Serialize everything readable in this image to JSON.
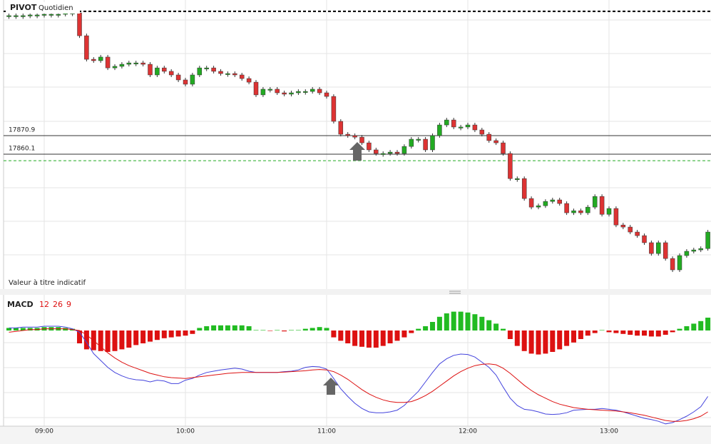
{
  "chart_data": [
    {
      "type": "candlestick",
      "title": "PIVOT",
      "subtitle": "Quotidien",
      "note": "Valeur à titre indicatif",
      "ylim": [
        17781.6,
        17949.8
      ],
      "up_color": "#22aa22",
      "down_color": "#dd3333",
      "price_lines": [
        17870.9,
        17860.1
      ],
      "dashed_lines": [
        {
          "value": 17943.2,
          "color": "#000000"
        },
        {
          "value": 17856.3,
          "color": "#22aa22"
        }
      ],
      "close": [
        17940.7,
        17940.7,
        17940.7,
        17941.1,
        17941.1,
        17941.5,
        17941.5,
        17941.5,
        17942.3,
        17942.3,
        17929.0,
        17915.3,
        17914.5,
        17916.6,
        17910.3,
        17911.2,
        17912.4,
        17913.2,
        17913.2,
        17912.4,
        17906.2,
        17910.3,
        17908.3,
        17906.2,
        17903.3,
        17900.8,
        17906.2,
        17910.3,
        17910.3,
        17908.3,
        17907.0,
        17907.0,
        17906.2,
        17904.1,
        17902.0,
        17894.6,
        17897.9,
        17897.9,
        17895.8,
        17895.0,
        17895.8,
        17896.6,
        17896.6,
        17897.9,
        17895.8,
        17893.7,
        17879.2,
        17871.7,
        17870.9,
        17870.0,
        17866.7,
        17862.6,
        17860.5,
        17860.5,
        17861.3,
        17860.5,
        17864.6,
        17868.8,
        17868.8,
        17862.6,
        17870.9,
        17877.1,
        17880.0,
        17875.9,
        17875.9,
        17877.1,
        17874.2,
        17871.7,
        17868.0,
        17866.7,
        17860.5,
        17845.9,
        17845.9,
        17834.3,
        17829.3,
        17830.1,
        17832.6,
        17833.5,
        17831.4,
        17826.0,
        17827.2,
        17826.0,
        17829.3,
        17835.5,
        17825.1,
        17828.5,
        17818.9,
        17817.7,
        17814.8,
        17812.7,
        17808.6,
        17802.3,
        17808.6,
        17799.4,
        17792.8,
        17801.1,
        17803.6,
        17804.4,
        17805.2,
        17814.8
      ]
    },
    {
      "type": "macd",
      "title": "MACD",
      "params": [
        12,
        26,
        9
      ],
      "ylim": [
        -11,
        4
      ],
      "categories": [
        null,
        null,
        null,
        null,
        null,
        "09:00",
        null,
        null,
        null,
        null,
        null,
        null,
        null,
        null,
        null,
        null,
        null,
        null,
        null,
        null,
        null,
        null,
        null,
        null,
        null,
        "10:00",
        null,
        null,
        null,
        null,
        null,
        null,
        null,
        null,
        null,
        null,
        null,
        null,
        null,
        null,
        null,
        null,
        null,
        null,
        null,
        "11:00",
        null,
        null,
        null,
        null,
        null,
        null,
        null,
        null,
        null,
        null,
        null,
        null,
        null,
        null,
        null,
        null,
        null,
        null,
        null,
        "12:00",
        null,
        null,
        null,
        null,
        null,
        null,
        null,
        null,
        null,
        null,
        null,
        null,
        null,
        null,
        null,
        null,
        null,
        null,
        null,
        "13:00",
        null,
        null,
        null,
        null,
        null,
        null,
        null,
        null,
        null,
        null,
        null,
        null,
        null,
        null
      ],
      "histogram": [
        0.3,
        0.3,
        0.3,
        0.3,
        0.3,
        0.4,
        0.4,
        0.4,
        0.3,
        0.2,
        -1.5,
        -2.2,
        -2.3,
        -2.4,
        -2.5,
        -2.4,
        -2.2,
        -2.0,
        -1.7,
        -1.5,
        -1.3,
        -1.1,
        -0.9,
        -0.8,
        -0.7,
        -0.6,
        -0.4,
        0.3,
        0.5,
        0.6,
        0.6,
        0.6,
        0.6,
        0.6,
        0.5,
        0.05,
        0.05,
        -0.05,
        0.05,
        -0.1,
        0.05,
        0.05,
        0.2,
        0.3,
        0.4,
        0.3,
        -0.8,
        -1.2,
        -1.5,
        -1.8,
        -1.9,
        -2.0,
        -2.0,
        -1.8,
        -1.5,
        -1.2,
        -0.8,
        -0.3,
        0.2,
        0.5,
        1.0,
        1.6,
        2.0,
        2.2,
        2.2,
        2.1,
        1.9,
        1.6,
        1.2,
        0.8,
        0.2,
        -1.0,
        -1.8,
        -2.4,
        -2.7,
        -2.8,
        -2.7,
        -2.5,
        -2.2,
        -1.8,
        -1.4,
        -1.0,
        -0.6,
        -0.3,
        0.05,
        -0.2,
        -0.3,
        -0.4,
        -0.5,
        -0.6,
        -0.6,
        -0.7,
        -0.7,
        -0.5,
        -0.2,
        0.2,
        0.5,
        0.8,
        1.1,
        1.5
      ],
      "histogram_up_color": "#22bb22",
      "histogram_down_color": "#dd1111",
      "macd": [
        0.3,
        0.3,
        0.4,
        0.4,
        0.4,
        0.5,
        0.5,
        0.5,
        0.4,
        0.2,
        -0.2,
        -1.4,
        -2.7,
        -3.5,
        -4.3,
        -4.9,
        -5.3,
        -5.6,
        -5.75,
        -5.8,
        -6.0,
        -5.8,
        -5.9,
        -6.2,
        -6.2,
        -5.8,
        -5.6,
        -5.2,
        -4.9,
        -4.75,
        -4.6,
        -4.5,
        -4.4,
        -4.5,
        -4.75,
        -4.9,
        -4.9,
        -4.9,
        -4.9,
        -4.8,
        -4.75,
        -4.6,
        -4.3,
        -4.2,
        -4.25,
        -4.5,
        -5.6,
        -6.8,
        -7.7,
        -8.5,
        -9.1,
        -9.5,
        -9.6,
        -9.6,
        -9.5,
        -9.3,
        -8.75,
        -7.9,
        -7.1,
        -6.0,
        -4.9,
        -3.9,
        -3.3,
        -2.9,
        -2.75,
        -2.8,
        -3.1,
        -3.7,
        -4.3,
        -5.2,
        -6.6,
        -7.9,
        -8.75,
        -9.2,
        -9.3,
        -9.5,
        -9.75,
        -9.8,
        -9.75,
        -9.6,
        -9.3,
        -9.25,
        -9.2,
        -9.2,
        -9.1,
        -9.2,
        -9.3,
        -9.5,
        -9.75,
        -10.0,
        -10.25,
        -10.4,
        -10.6,
        -10.9,
        -10.75,
        -10.4,
        -10.0,
        -9.5,
        -8.9,
        -7.7
      ],
      "macd_color": "#4444dd",
      "signal": [
        -0.2,
        -0.1,
        0.0,
        0.1,
        0.1,
        0.2,
        0.2,
        0.2,
        0.2,
        0.1,
        0.0,
        -0.5,
        -1.2,
        -1.9,
        -2.6,
        -3.2,
        -3.7,
        -4.1,
        -4.4,
        -4.7,
        -5.0,
        -5.2,
        -5.4,
        -5.5,
        -5.55,
        -5.6,
        -5.5,
        -5.4,
        -5.3,
        -5.2,
        -5.1,
        -5.0,
        -4.95,
        -4.9,
        -4.9,
        -4.9,
        -4.9,
        -4.9,
        -4.9,
        -4.85,
        -4.8,
        -4.75,
        -4.7,
        -4.6,
        -4.55,
        -4.6,
        -4.8,
        -5.2,
        -5.7,
        -6.3,
        -6.9,
        -7.4,
        -7.8,
        -8.1,
        -8.3,
        -8.4,
        -8.4,
        -8.3,
        -8.0,
        -7.6,
        -7.1,
        -6.5,
        -5.9,
        -5.3,
        -4.8,
        -4.4,
        -4.1,
        -3.95,
        -3.9,
        -4.0,
        -4.4,
        -5.0,
        -5.7,
        -6.4,
        -7.0,
        -7.5,
        -7.9,
        -8.3,
        -8.6,
        -8.8,
        -9.0,
        -9.1,
        -9.2,
        -9.25,
        -9.3,
        -9.35,
        -9.4,
        -9.5,
        -9.6,
        -9.75,
        -9.9,
        -10.1,
        -10.3,
        -10.5,
        -10.6,
        -10.6,
        -10.5,
        -10.3,
        -10.0,
        -9.5
      ],
      "signal_color": "#dd1111"
    }
  ]
}
